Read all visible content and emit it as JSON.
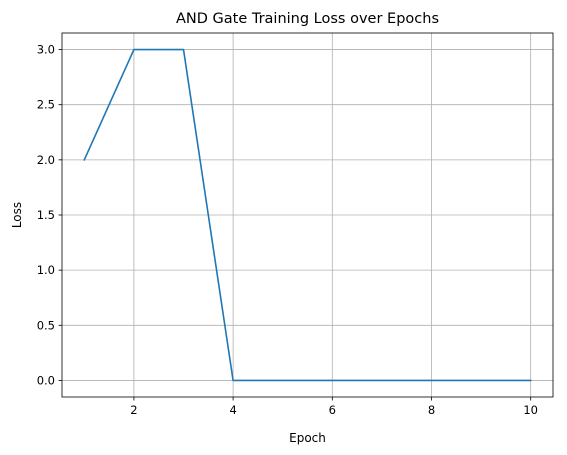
{
  "chart_data": {
    "type": "line",
    "title": "AND Gate Training Loss over Epochs",
    "xlabel": "Epoch",
    "ylabel": "Loss",
    "xlim": [
      0.55,
      10.45
    ],
    "ylim": [
      -0.15,
      3.15
    ],
    "xticks": [
      2,
      4,
      6,
      8,
      10
    ],
    "yticks": [
      0.0,
      0.5,
      1.0,
      1.5,
      2.0,
      2.5,
      3.0
    ],
    "xtick_labels": [
      "2",
      "4",
      "6",
      "8",
      "10"
    ],
    "ytick_labels": [
      "0.0",
      "0.5",
      "1.0",
      "1.5",
      "2.0",
      "2.5",
      "3.0"
    ],
    "grid": true,
    "legend": "none",
    "x": [
      1,
      2,
      3,
      4,
      5,
      6,
      7,
      8,
      9,
      10
    ],
    "series": [
      {
        "values": [
          2,
          3,
          3,
          0,
          0,
          0,
          0,
          0,
          0,
          0
        ],
        "color": "#1f77b4"
      }
    ],
    "colors": {
      "line": "#1f77b4",
      "grid": "#b0b0b0",
      "axes": "#000000"
    }
  }
}
